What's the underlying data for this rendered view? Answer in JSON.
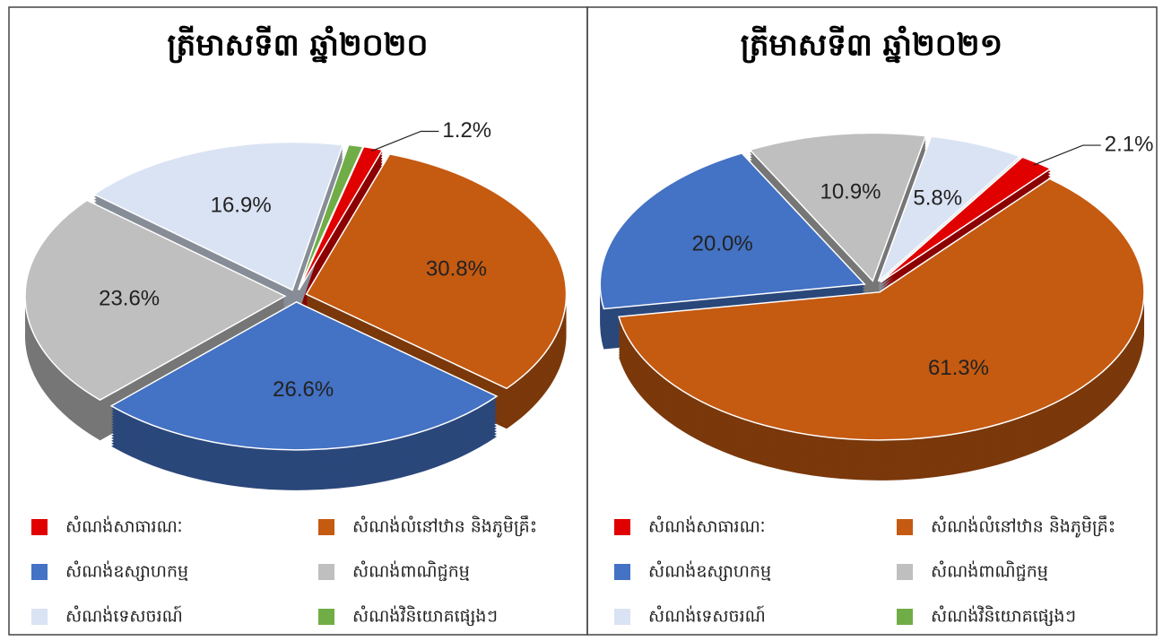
{
  "chart_data": [
    {
      "type": "pie",
      "title": "ត្រីមាសទី៣ ឆ្នាំ២០២០",
      "categories": [
        "សំណង់សាធារណៈ",
        "សំណង់លំនៅឋាន និងភូមិគ្រឹះ",
        "សំណង់ឧស្សាហកម្ម",
        "សំណង់ពាណិជ្ជកម្ម",
        "សំណង់ទេសចរណ៍",
        "សំណង់វិនិយោគផ្សេងៗ"
      ],
      "values": [
        1.2,
        30.8,
        26.6,
        23.6,
        16.9,
        0.9
      ],
      "value_labels": [
        "1.2%",
        "30.8%",
        "26.6%",
        "23.6%",
        "16.9%",
        null
      ],
      "colors": [
        "#e00000",
        "#c55a11",
        "#4472c4",
        "#bfbfbf",
        "#dae3f3",
        "#70ad47"
      ]
    },
    {
      "type": "pie",
      "title": "ត្រីមាសទី៣ ឆ្នាំ២០២១",
      "categories": [
        "សំណង់សាធារណៈ",
        "សំណង់លំនៅឋាន និងភូមិគ្រឹះ",
        "សំណង់ឧស្សាហកម្ម",
        "សំណង់ពាណិជ្ជកម្ម",
        "សំណង់ទេសចរណ៍",
        "សំណង់វិនិយោគផ្សេងៗ"
      ],
      "values": [
        2.1,
        61.3,
        20.0,
        10.9,
        5.8,
        0
      ],
      "value_labels": [
        "2.1%",
        "61.3%",
        "20.0%",
        "10.9%",
        "5.8%",
        null
      ],
      "colors": [
        "#e00000",
        "#c55a11",
        "#4472c4",
        "#bfbfbf",
        "#dae3f3",
        "#70ad47"
      ]
    }
  ]
}
